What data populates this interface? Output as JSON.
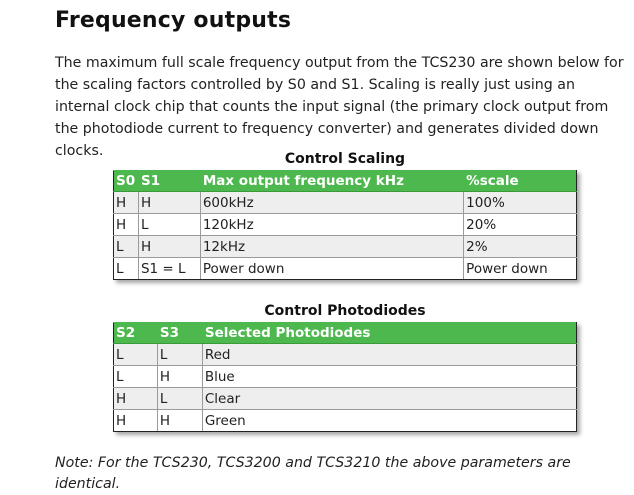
{
  "heading": "Frequency outputs",
  "intro": "The maximum full scale frequency output from the TCS230 are shown below for the scaling factors controlled by S0 and S1. Scaling is really just using an internal clock chip that counts the input signal (the primary clock output from the photodiode current to frequency converter) and generates divided down clocks.",
  "scaling_table": {
    "caption": "Control Scaling",
    "headers": [
      "S0",
      "S1",
      "Max output frequency kHz",
      "%scale"
    ],
    "rows": [
      [
        "H",
        "H",
        "600kHz",
        "100%"
      ],
      [
        "H",
        "L",
        "120kHz",
        "20%"
      ],
      [
        "L",
        "H",
        "12kHz",
        "2%"
      ],
      [
        "L",
        "S1 = L",
        "Power down",
        "Power down"
      ]
    ]
  },
  "photodiode_table": {
    "caption": "Control Photodiodes",
    "headers": [
      "S2",
      "S3",
      "Selected Photodiodes"
    ],
    "rows": [
      [
        "L",
        "L",
        "Red"
      ],
      [
        "L",
        "H",
        "Blue"
      ],
      [
        "H",
        "L",
        "Clear"
      ],
      [
        "H",
        "H",
        "Green"
      ]
    ]
  },
  "note": "Note: For the TCS230, TCS3200 and TCS3210 the above parameters are identical.",
  "colors": {
    "header_green": "#4db84d",
    "odd_row": "#eeeeee"
  }
}
